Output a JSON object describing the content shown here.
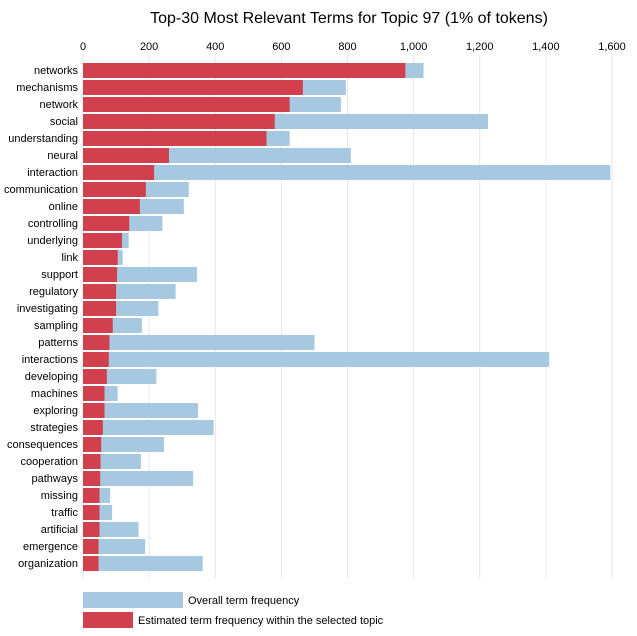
{
  "chart_data": {
    "type": "bar",
    "orientation": "horizontal",
    "title": "Top-30 Most Relevant Terms for Topic 97 (1% of tokens)",
    "xlim": [
      0,
      1600
    ],
    "xticks": [
      0,
      200,
      400,
      600,
      800,
      1000,
      1200,
      1400,
      1600
    ],
    "xtick_labels": [
      "0",
      "200",
      "400",
      "600",
      "800",
      "1,000",
      "1,200",
      "1,400",
      "1,600"
    ],
    "grid": true,
    "colors": {
      "overall": "#a6c8e1",
      "topic": "#d1404c"
    },
    "categories": [
      "networks",
      "mechanisms",
      "network",
      "social",
      "understanding",
      "neural",
      "interaction",
      "communication",
      "online",
      "controlling",
      "underlying",
      "link",
      "support",
      "regulatory",
      "investigating",
      "sampling",
      "patterns",
      "interactions",
      "developing",
      "machines",
      "exploring",
      "strategies",
      "consequences",
      "cooperation",
      "pathways",
      "missing",
      "traffic",
      "artificial",
      "emergence",
      "organization"
    ],
    "series": [
      {
        "name": "Overall term frequency",
        "values": [
          1030,
          795,
          780,
          1225,
          625,
          810,
          1595,
          320,
          305,
          240,
          138,
          120,
          345,
          280,
          228,
          178,
          700,
          1410,
          222,
          105,
          348,
          395,
          245,
          175,
          333,
          82,
          88,
          168,
          188,
          362
        ]
      },
      {
        "name": "Estimated term frequency within the selected topic",
        "values": [
          975,
          665,
          625,
          580,
          555,
          260,
          215,
          190,
          172,
          140,
          118,
          105,
          103,
          100,
          100,
          90,
          80,
          78,
          72,
          65,
          65,
          60,
          55,
          53,
          52,
          50,
          50,
          50,
          47,
          47
        ]
      }
    ],
    "legend": [
      "Overall term frequency",
      "Estimated term frequency within the selected topic"
    ],
    "legend_position": "bottom-left"
  }
}
